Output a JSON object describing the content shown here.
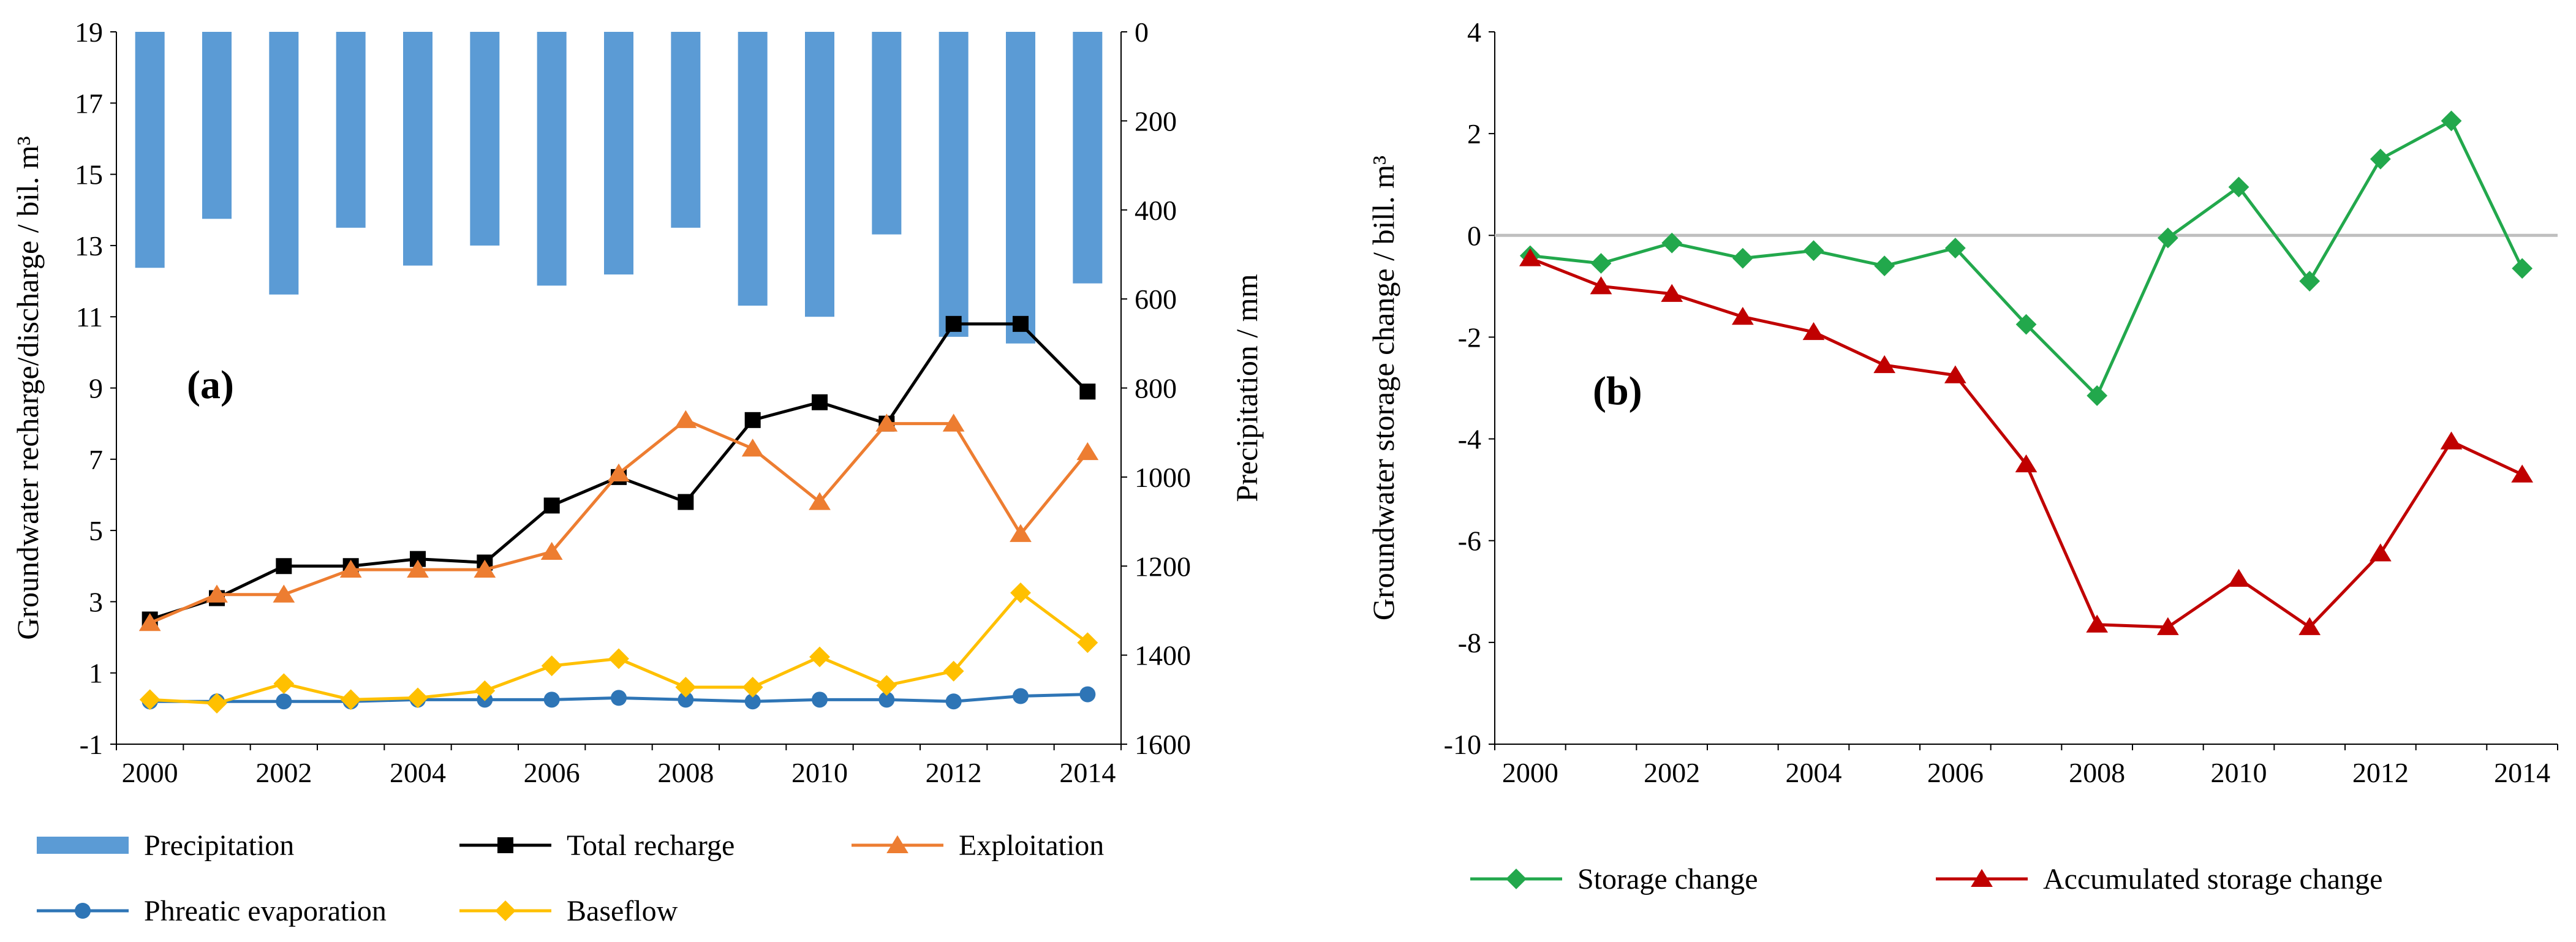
{
  "colors": {
    "precipitation": "#5B9BD5",
    "total_recharge": "#000000",
    "exploitation": "#ED7D31",
    "phreatic_evaporation": "#2E75B6",
    "baseflow": "#FFC000",
    "storage_change": "#22A84C",
    "accumulated_storage_change": "#C00000",
    "zero_line": "#BFBFBF"
  },
  "chart_data": [
    {
      "type": "bar+line",
      "panel_label": "(a)",
      "xlabel": "",
      "ylabel": "Groundwater recharge/discharge / bil. m³",
      "y2label": "Precipitation / mm",
      "ylim": [
        -1,
        19
      ],
      "y_ticks": [
        "-1",
        "1",
        "3",
        "5",
        "7",
        "9",
        "11",
        "13",
        "15",
        "17",
        "19"
      ],
      "y2lim": [
        0,
        1600
      ],
      "y2_inverted": true,
      "y2_ticks": [
        "0",
        "200",
        "400",
        "600",
        "800",
        "1000",
        "1200",
        "1400",
        "1600"
      ],
      "x": [
        2000,
        2001,
        2002,
        2003,
        2004,
        2005,
        2006,
        2007,
        2008,
        2009,
        2010,
        2011,
        2012,
        2013,
        2014
      ],
      "x_ticks": [
        "2000",
        "2002",
        "2004",
        "2006",
        "2008",
        "2010",
        "2012",
        "2014"
      ],
      "series": [
        {
          "name": "Precipitation",
          "kind": "bar",
          "axis": "right",
          "values": [
            530,
            420,
            590,
            440,
            525,
            480,
            570,
            545,
            440,
            615,
            640,
            455,
            685,
            700,
            565
          ]
        },
        {
          "name": "Total recharge",
          "kind": "line",
          "marker": "square",
          "values": [
            2.5,
            3.1,
            4.0,
            4.0,
            4.2,
            4.1,
            5.7,
            6.5,
            5.8,
            8.1,
            8.6,
            8.0,
            10.8,
            10.8,
            8.9
          ]
        },
        {
          "name": "Exploitation",
          "kind": "line",
          "marker": "triangle",
          "values": [
            2.4,
            3.2,
            3.2,
            3.9,
            3.9,
            3.9,
            4.4,
            6.6,
            8.1,
            7.3,
            5.8,
            8.0,
            8.0,
            4.9,
            7.2
          ]
        },
        {
          "name": "Phreatic evaporation",
          "kind": "line",
          "marker": "circle",
          "values": [
            0.2,
            0.2,
            0.2,
            0.2,
            0.25,
            0.25,
            0.25,
            0.3,
            0.25,
            0.2,
            0.25,
            0.25,
            0.2,
            0.35,
            0.4
          ]
        },
        {
          "name": "Baseflow",
          "kind": "line",
          "marker": "diamond",
          "values": [
            0.25,
            0.15,
            0.7,
            0.25,
            0.3,
            0.5,
            1.2,
            1.4,
            0.6,
            0.6,
            1.45,
            0.65,
            1.05,
            3.25,
            1.85
          ]
        }
      ],
      "legend": [
        "Precipitation",
        "Total recharge",
        "Exploitation",
        "Phreatic evaporation",
        "Baseflow"
      ]
    },
    {
      "type": "line",
      "panel_label": "(b)",
      "xlabel": "",
      "ylabel": "Groundwater storage change / bill. m³",
      "ylim": [
        -10,
        4
      ],
      "y_ticks": [
        "-10",
        "-8",
        "-6",
        "-4",
        "-2",
        "0",
        "2",
        "4"
      ],
      "x": [
        2000,
        2001,
        2002,
        2003,
        2004,
        2005,
        2006,
        2007,
        2008,
        2009,
        2010,
        2011,
        2012,
        2013,
        2014
      ],
      "x_ticks": [
        "2000",
        "2002",
        "2004",
        "2006",
        "2008",
        "2010",
        "2012",
        "2014"
      ],
      "series": [
        {
          "name": "Storage change",
          "marker": "diamond",
          "values": [
            -0.4,
            -0.55,
            -0.15,
            -0.45,
            -0.3,
            -0.6,
            -0.25,
            -1.75,
            -3.15,
            -0.05,
            0.95,
            -0.9,
            1.5,
            2.25,
            -0.65
          ]
        },
        {
          "name": "Accumulated storage change",
          "marker": "triangle",
          "values": [
            -0.45,
            -1.0,
            -1.15,
            -1.6,
            -1.9,
            -2.55,
            -2.75,
            -4.5,
            -7.65,
            -7.7,
            -6.75,
            -7.7,
            -6.25,
            -4.05,
            -4.7
          ]
        }
      ],
      "legend": [
        "Storage change",
        "Accumulated storage change"
      ]
    }
  ]
}
